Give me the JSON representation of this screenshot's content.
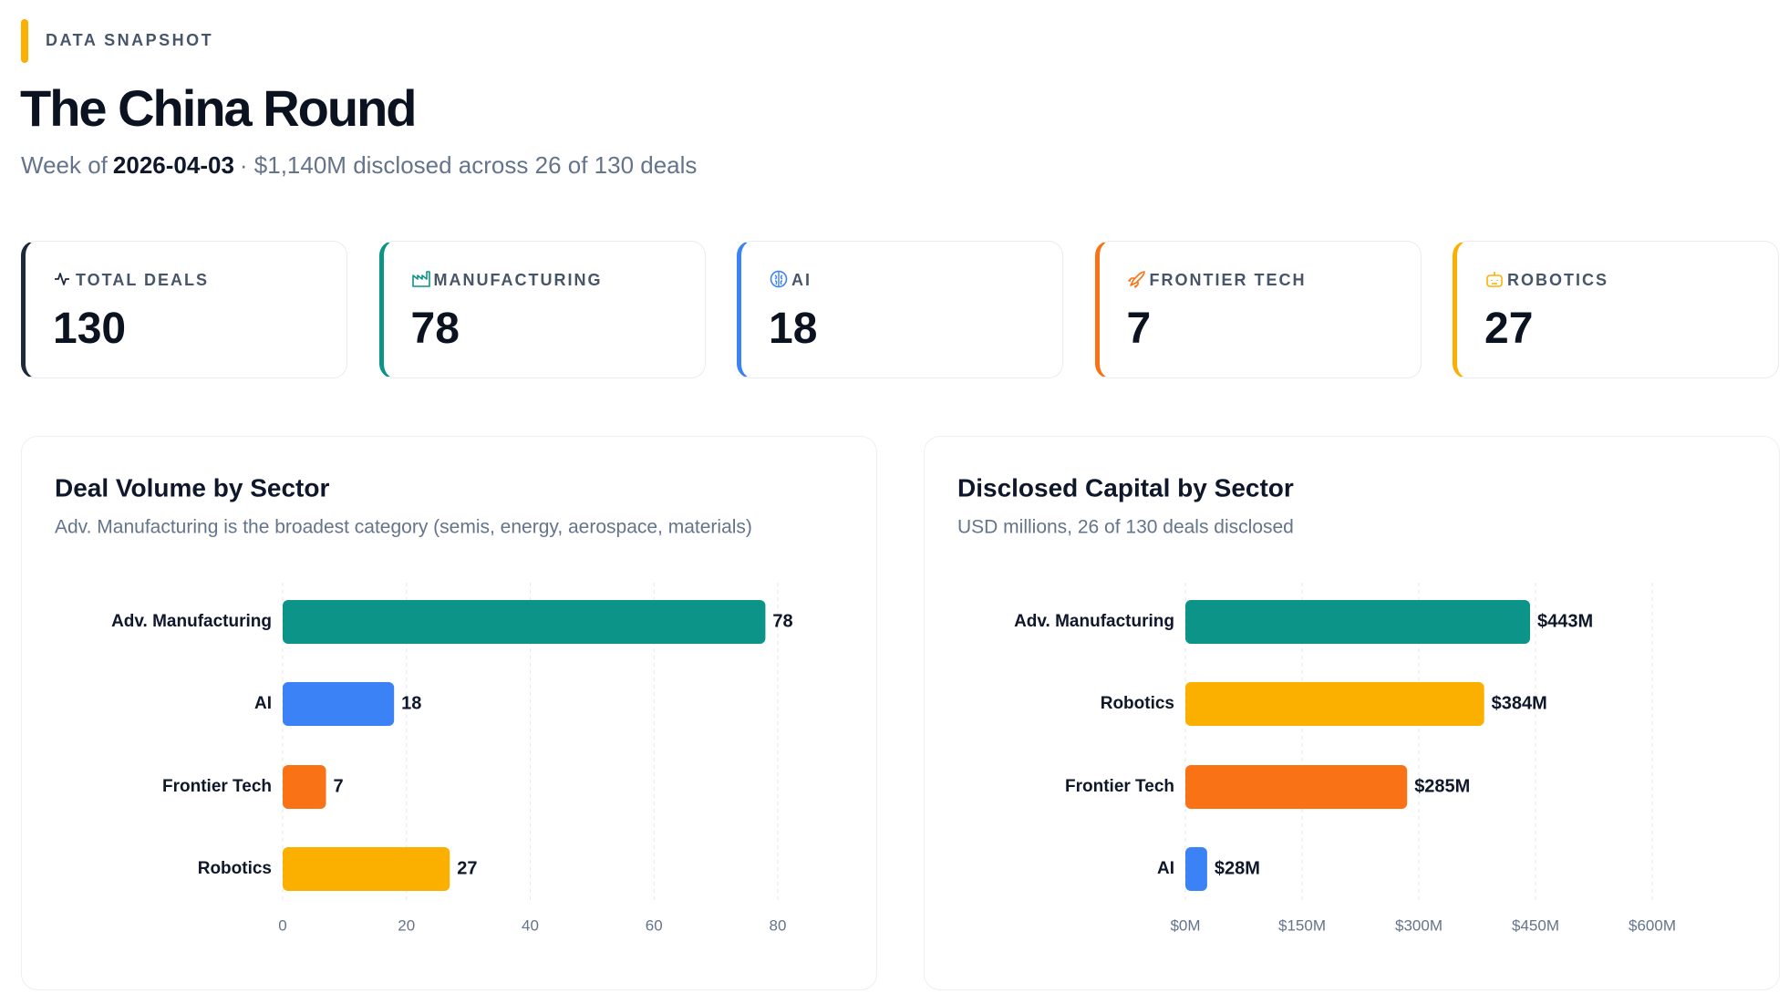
{
  "header": {
    "eyebrow": "DATA SNAPSHOT",
    "title": "The China Round",
    "subtitle": {
      "prefix": "Week of",
      "date": "2026-04-03",
      "summary": "· $1,140M disclosed across 26 of 130 deals"
    }
  },
  "kpis": [
    {
      "label": "TOTAL DEALS",
      "value": 130,
      "color": "#1e293b"
    },
    {
      "label": "MANUFACTURING",
      "value": 78,
      "color": "#0d9488"
    },
    {
      "label": "AI",
      "value": 18,
      "color": "#3b82f6"
    },
    {
      "label": "FRONTIER TECH",
      "value": 7,
      "color": "#f97316"
    },
    {
      "label": "ROBOTICS",
      "value": 27,
      "color": "#fbb000"
    }
  ],
  "chart_data": [
    {
      "type": "bar",
      "orientation": "horizontal",
      "title": "Deal Volume by Sector",
      "subtitle": "Adv. Manufacturing is the broadest category (semis, energy, aerospace, materials)",
      "categories": [
        "Adv. Manufacturing",
        "AI",
        "Frontier Tech",
        "Robotics"
      ],
      "values": [
        78,
        18,
        7,
        27
      ],
      "colors": [
        "#0d9488",
        "#3b82f6",
        "#f97316",
        "#fbb000"
      ],
      "xlim": [
        0,
        80
      ],
      "xticks": [
        0,
        20,
        40,
        60,
        80
      ],
      "grid": true
    },
    {
      "type": "bar",
      "orientation": "horizontal",
      "title": "Disclosed Capital by Sector",
      "subtitle": "USD millions, 26 of 130 deals disclosed",
      "categories": [
        "Adv. Manufacturing",
        "Robotics",
        "Frontier Tech",
        "AI"
      ],
      "values": [
        443,
        384,
        285,
        28
      ],
      "value_labels": [
        "$443M",
        "$384M",
        "$285M",
        "$28M"
      ],
      "colors": [
        "#0d9488",
        "#fbb000",
        "#f97316",
        "#3b82f6"
      ],
      "xlim": [
        0,
        600
      ],
      "xticks": [
        {
          "value": 0,
          "label": "$0M"
        },
        {
          "value": 150,
          "label": "$150M"
        },
        {
          "value": 300,
          "label": "$300M"
        },
        {
          "value": 450,
          "label": "$450M"
        },
        {
          "value": 600,
          "label": "$600M"
        }
      ],
      "grid": true
    }
  ]
}
